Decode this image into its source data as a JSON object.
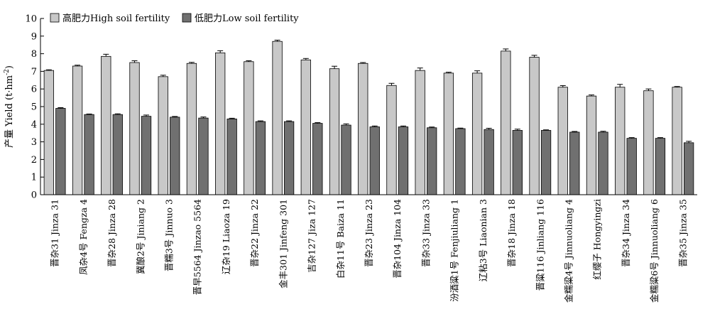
{
  "chart_data": {
    "type": "bar",
    "ylabel_main": "产量 Yield (t·hm",
    "ylabel_sup": "-2",
    "ylabel_close": ")",
    "ylim": [
      0,
      10
    ],
    "yticks": [
      "0",
      "1",
      "2",
      "3",
      "4",
      "5",
      "6",
      "7",
      "8",
      "9",
      "10"
    ],
    "legend_position": "top-left",
    "grid": false,
    "categories": [
      "晋杂31 Jinza 31",
      "凤杂4号 Fengza 4",
      "晋杂28 Jinza 28",
      "冀酿2号 Jiniang 2",
      "晋糯3号 Jinnuo 3",
      "晋早5564 Jinzao 5564",
      "辽杂19 Liaoza 19",
      "晋杂22 Jinza 22",
      "金丰301 Jinfeng 301",
      "吉杂127 Jiza 127",
      "白杂11号 Baiza 11",
      "晋杂23 Jinza 23",
      "晋杂104 Jinza 104",
      "晋杂33 Jinza 33",
      "汾酒粱1号 Fenjiuliang 1",
      "辽粘3号 Liaonian 3",
      "晋杂18 Jinza 18",
      "晋粱116 Jinliang 116",
      "金糯粱4号 Jinnuoliang 4",
      "红缨子 Hongyingzi",
      "晋杂34 Jinza 34",
      "金糯粱6号 Jinnuoliang 6",
      "晋杂35 Jinza 35"
    ],
    "series": [
      {
        "name": "高肥力High soil fertility",
        "color": "#c8c8c8",
        "values": [
          7.05,
          7.3,
          7.85,
          7.5,
          6.7,
          7.45,
          8.05,
          7.55,
          8.7,
          7.65,
          7.15,
          7.45,
          6.2,
          7.05,
          6.9,
          6.9,
          8.15,
          7.8,
          6.1,
          5.6,
          6.1,
          5.9,
          6.1
        ],
        "errors": [
          0.04,
          0.05,
          0.12,
          0.1,
          0.08,
          0.06,
          0.12,
          0.05,
          0.07,
          0.08,
          0.14,
          0.05,
          0.12,
          0.14,
          0.05,
          0.13,
          0.12,
          0.11,
          0.09,
          0.06,
          0.16,
          0.1,
          0.04
        ]
      },
      {
        "name": "低肥力Low soil fertility",
        "color": "#707070",
        "values": [
          4.9,
          4.55,
          4.55,
          4.45,
          4.4,
          4.35,
          4.3,
          4.15,
          4.15,
          4.05,
          3.95,
          3.85,
          3.85,
          3.8,
          3.75,
          3.7,
          3.65,
          3.65,
          3.55,
          3.55,
          3.2,
          3.2,
          2.95
        ],
        "errors": [
          0.04,
          0.03,
          0.04,
          0.07,
          0.04,
          0.06,
          0.04,
          0.04,
          0.04,
          0.04,
          0.07,
          0.05,
          0.05,
          0.04,
          0.03,
          0.07,
          0.07,
          0.03,
          0.04,
          0.05,
          0.04,
          0.04,
          0.08
        ]
      }
    ]
  }
}
